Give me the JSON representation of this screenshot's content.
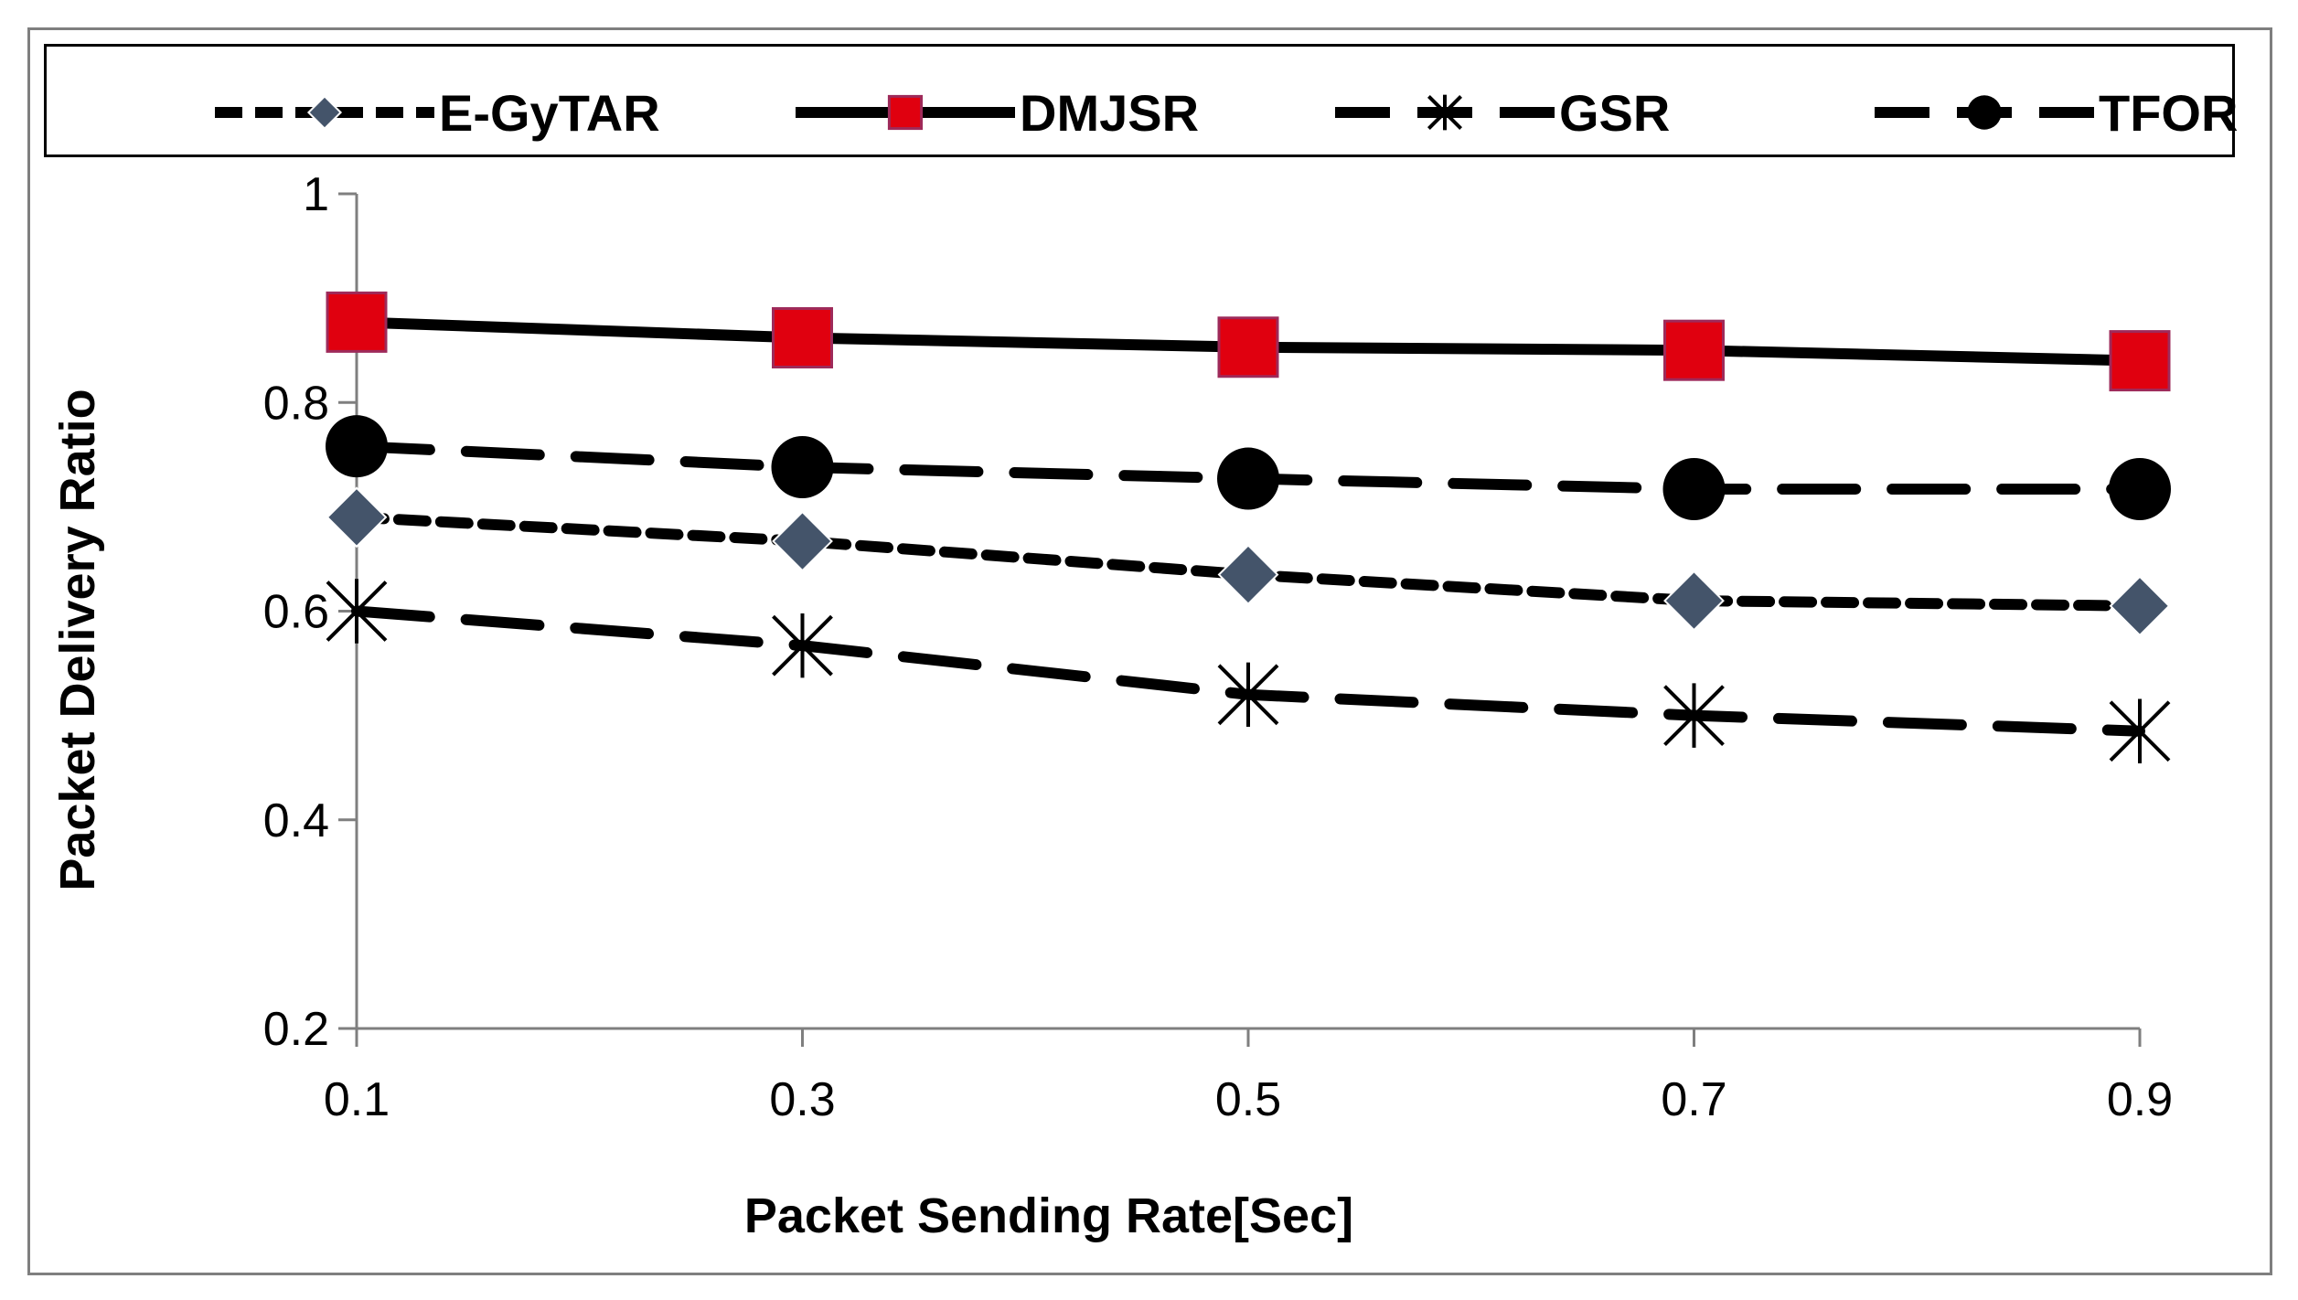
{
  "chart_data": {
    "type": "line",
    "title": "",
    "xlabel": "Packet Sending Rate[Sec]",
    "ylabel": "Packet Delivery Ratio",
    "x": [
      0.1,
      0.3,
      0.5,
      0.7,
      0.9
    ],
    "x_tick_labels": [
      "0.1",
      "0.3",
      "0.5",
      "0.7",
      "0.9"
    ],
    "xlim": [
      0.1,
      0.9
    ],
    "ylim": [
      0.2,
      1.0
    ],
    "y_ticks": [
      0.2,
      0.4,
      0.6,
      0.8,
      1.0
    ],
    "y_tick_labels": [
      "0.2",
      "0.4",
      "0.6",
      "0.8",
      "1"
    ],
    "grid": false,
    "legend_position": "top",
    "series": [
      {
        "name": "E-GyTAR",
        "values": [
          0.69,
          0.667,
          0.635,
          0.61,
          0.605
        ],
        "marker": "diamond",
        "line": "short-dash",
        "color": "#000000",
        "marker_color": "#44546a"
      },
      {
        "name": "DMJSR",
        "values": [
          0.877,
          0.862,
          0.853,
          0.85,
          0.84
        ],
        "marker": "square",
        "line": "solid",
        "color": "#000000",
        "marker_color": "#e0000f"
      },
      {
        "name": "GSR",
        "values": [
          0.6,
          0.567,
          0.52,
          0.5,
          0.485
        ],
        "marker": "star",
        "line": "long-dash",
        "color": "#000000",
        "marker_color": "#000000"
      },
      {
        "name": "TFOR",
        "values": [
          0.758,
          0.738,
          0.727,
          0.717,
          0.717
        ],
        "marker": "circle",
        "line": "long-dash",
        "color": "#000000",
        "marker_color": "#000000"
      }
    ]
  }
}
